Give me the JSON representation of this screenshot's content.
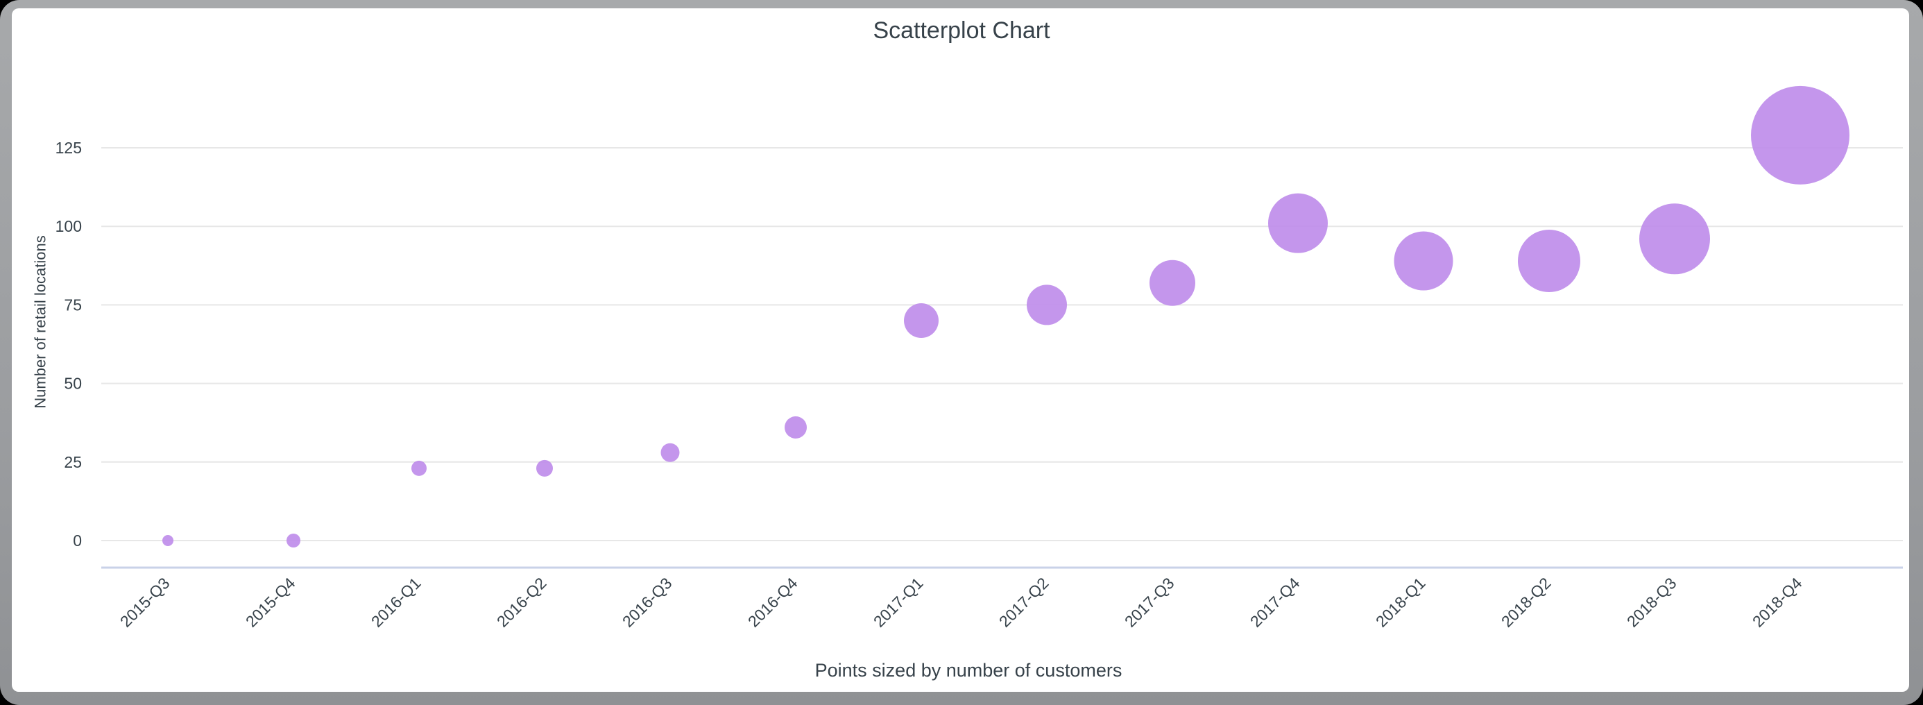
{
  "chart_data": {
    "type": "scatter",
    "title": "Scatterplot Chart",
    "ylabel": "Number of retail locations",
    "xlabel": "",
    "caption": "Points sized by number of customers",
    "size_legend": "Points sized by number of customers",
    "categories": [
      "2015-Q3",
      "2015-Q4",
      "2016-Q1",
      "2016-Q2",
      "2016-Q3",
      "2016-Q4",
      "2017-Q1",
      "2017-Q2",
      "2017-Q3",
      "2017-Q4",
      "2018-Q1",
      "2018-Q2",
      "2018-Q3",
      "2018-Q4"
    ],
    "series": [
      {
        "name": "Number of retail locations",
        "values": [
          0,
          0,
          23,
          23,
          28,
          36,
          70,
          75,
          82,
          101,
          89,
          89,
          96,
          129
        ],
        "point_radius_px": [
          8,
          10,
          11,
          12,
          13.5,
          16,
          25,
          29,
          33,
          43,
          42.5,
          45,
          51,
          71
        ]
      }
    ],
    "yticks": [
      0,
      25,
      50,
      75,
      100,
      125
    ],
    "ylim": [
      0,
      134
    ],
    "grid": true,
    "legend_position": "none",
    "colors": {
      "point_fill": "#bf8dea",
      "point_opacity": 0.92,
      "gridline": "#e7e7e7",
      "axis_baseline": "#c9d2e8",
      "text": "#37424a",
      "card_background": "#ffffff",
      "frame_gray": "#9fa1a4",
      "outer_background": "#000000"
    }
  }
}
